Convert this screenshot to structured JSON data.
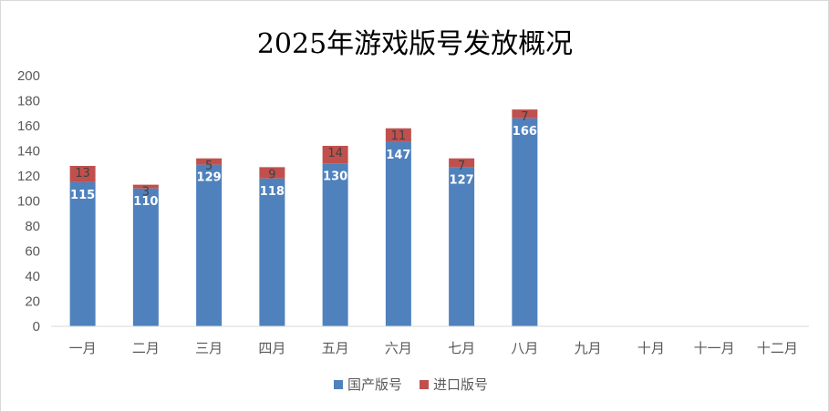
{
  "chart_data": {
    "type": "bar",
    "stacked": true,
    "title": "2025年游戏版号发放概况",
    "categories": [
      "一月",
      "二月",
      "三月",
      "四月",
      "五月",
      "六月",
      "七月",
      "八月",
      "九月",
      "十月",
      "十一月",
      "十二月"
    ],
    "series": [
      {
        "name": "国产版号",
        "color": "#4f81bd",
        "values": [
          115,
          110,
          129,
          118,
          130,
          147,
          127,
          166,
          null,
          null,
          null,
          null
        ]
      },
      {
        "name": "进口版号",
        "color": "#c0504d",
        "values": [
          13,
          3,
          5,
          9,
          14,
          11,
          7,
          7,
          null,
          null,
          null,
          null
        ]
      }
    ],
    "ylim": [
      0,
      200
    ],
    "yticks": [
      0,
      20,
      40,
      60,
      80,
      100,
      120,
      140,
      160,
      180,
      200
    ],
    "grid": false,
    "legend_position": "bottom",
    "data_labels": true
  }
}
